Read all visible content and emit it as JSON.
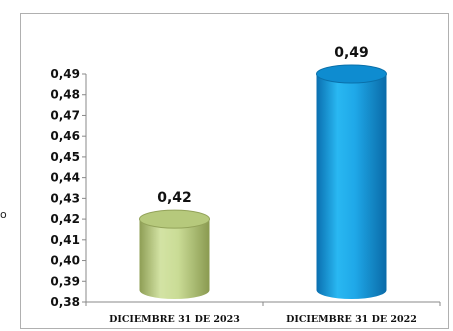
{
  "chart_data": {
    "type": "bar",
    "categories": [
      "DICIEMBRE 31 DE 2023",
      "DICIEMBRE 31 DE 2022"
    ],
    "values": [
      0.42,
      0.49
    ],
    "value_labels": [
      "0,42",
      "0,49"
    ],
    "series": [
      {
        "values": [
          0.42,
          0.49
        ]
      }
    ],
    "ylim": [
      0.38,
      0.49
    ],
    "yticks": [
      "0,38",
      "0,39",
      "0,40",
      "0,41",
      "0,42",
      "0,43",
      "0,44",
      "0,45",
      "0,46",
      "0,47",
      "0,48",
      "0,49"
    ],
    "grid": false,
    "legend": "none",
    "colors": [
      "#c7d894",
      "#13a6e6"
    ],
    "bar_style": "3d-cylinder"
  },
  "side_text": "o"
}
